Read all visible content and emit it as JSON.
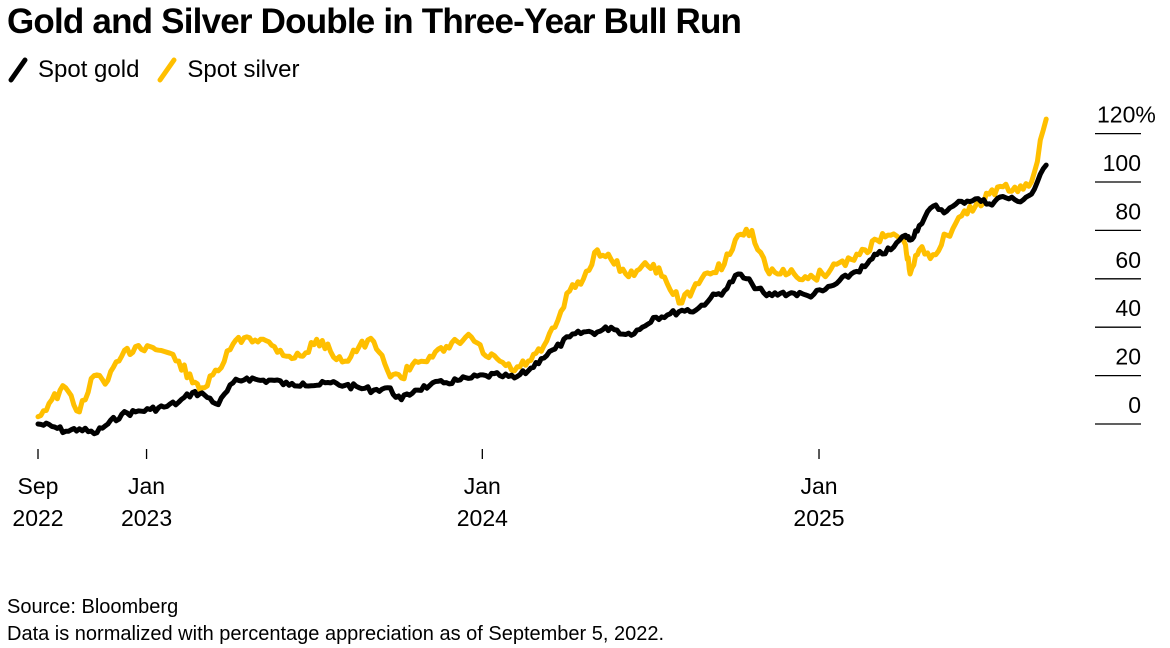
{
  "title": "Gold and Silver Double in Three-Year Bull Run",
  "legend": [
    {
      "label": "Spot gold",
      "color": "#000000"
    },
    {
      "label": "Spot silver",
      "color": "#FFBF00"
    }
  ],
  "footer": {
    "source": "Source: Bloomberg",
    "note": "Data is normalized with percentage appreciation as of September 5, 2022."
  },
  "chart_data": {
    "type": "line",
    "title": "Gold and Silver Double in Three-Year Bull Run",
    "xlabel": "",
    "ylabel": "",
    "y_unit": "%",
    "ylim": [
      0,
      120
    ],
    "yticks": [
      0,
      20,
      40,
      60,
      80,
      100,
      120
    ],
    "ytick_labels": [
      "0",
      "20",
      "40",
      "60",
      "80",
      "100",
      "120%"
    ],
    "y_axis_position": "right",
    "x_start": "2022-09-05",
    "x_end": "2025-09-05",
    "xticks": [
      {
        "date": "2022-09-05",
        "label": [
          "Sep",
          "2022"
        ]
      },
      {
        "date": "2023-01-01",
        "label": [
          "Jan",
          "2023"
        ]
      },
      {
        "date": "2024-01-01",
        "label": [
          "Jan",
          "2024"
        ]
      },
      {
        "date": "2025-01-01",
        "label": [
          "Jan",
          "2025"
        ]
      }
    ],
    "grid": false,
    "legend_position": "top-left",
    "x": [
      "2022-09-05",
      "2022-09-20",
      "2022-10-05",
      "2022-10-20",
      "2022-11-05",
      "2022-11-20",
      "2022-12-05",
      "2022-12-20",
      "2023-01-05",
      "2023-01-20",
      "2023-02-05",
      "2023-02-20",
      "2023-03-05",
      "2023-03-20",
      "2023-04-05",
      "2023-04-20",
      "2023-05-05",
      "2023-05-20",
      "2023-06-05",
      "2023-06-20",
      "2023-07-05",
      "2023-07-20",
      "2023-08-05",
      "2023-08-20",
      "2023-09-05",
      "2023-09-20",
      "2023-10-05",
      "2023-10-20",
      "2023-11-05",
      "2023-11-20",
      "2023-12-05",
      "2023-12-20",
      "2024-01-05",
      "2024-01-20",
      "2024-02-05",
      "2024-02-20",
      "2024-03-05",
      "2024-03-20",
      "2024-04-05",
      "2024-04-20",
      "2024-05-05",
      "2024-05-20",
      "2024-06-05",
      "2024-06-20",
      "2024-07-05",
      "2024-07-20",
      "2024-08-05",
      "2024-08-20",
      "2024-09-05",
      "2024-09-20",
      "2024-10-05",
      "2024-10-20",
      "2024-11-05",
      "2024-11-20",
      "2024-12-05",
      "2024-12-20",
      "2025-01-05",
      "2025-01-20",
      "2025-02-05",
      "2025-02-20",
      "2025-03-05",
      "2025-03-20",
      "2025-04-05",
      "2025-04-10",
      "2025-04-20",
      "2025-05-05",
      "2025-05-20",
      "2025-06-05",
      "2025-06-20",
      "2025-07-05",
      "2025-07-20",
      "2025-08-05",
      "2025-08-20",
      "2025-09-05"
    ],
    "series": [
      {
        "name": "Spot gold",
        "color": "#000000",
        "values": [
          0,
          -1,
          -3,
          -2,
          -4,
          0,
          4,
          5,
          6,
          7,
          9,
          13,
          12,
          8,
          17,
          19,
          18,
          18,
          16,
          17,
          16,
          17,
          16,
          15,
          14,
          15,
          10,
          14,
          16,
          17,
          18,
          19,
          20,
          20,
          19,
          22,
          27,
          31,
          36,
          38,
          38,
          40,
          37,
          39,
          44,
          45,
          47,
          47,
          52,
          55,
          62,
          58,
          53,
          54,
          54,
          53,
          55,
          58,
          62,
          65,
          70,
          72,
          78,
          76,
          82,
          90,
          88,
          92,
          93,
          91,
          94,
          92,
          95,
          107
        ]
      },
      {
        "name": "Spot silver",
        "color": "#FFBF00",
        "values": [
          3,
          10,
          15,
          5,
          20,
          18,
          28,
          32,
          32,
          30,
          26,
          17,
          15,
          22,
          33,
          36,
          35,
          32,
          28,
          28,
          35,
          30,
          26,
          32,
          34,
          22,
          19,
          26,
          28,
          30,
          34,
          36,
          28,
          26,
          22,
          26,
          30,
          40,
          55,
          60,
          72,
          68,
          62,
          64,
          66,
          58,
          50,
          58,
          62,
          66,
          78,
          80,
          64,
          62,
          62,
          60,
          62,
          66,
          68,
          72,
          76,
          78,
          74,
          62,
          72,
          70,
          78,
          86,
          90,
          95,
          98,
          96,
          100,
          126
        ]
      }
    ]
  }
}
